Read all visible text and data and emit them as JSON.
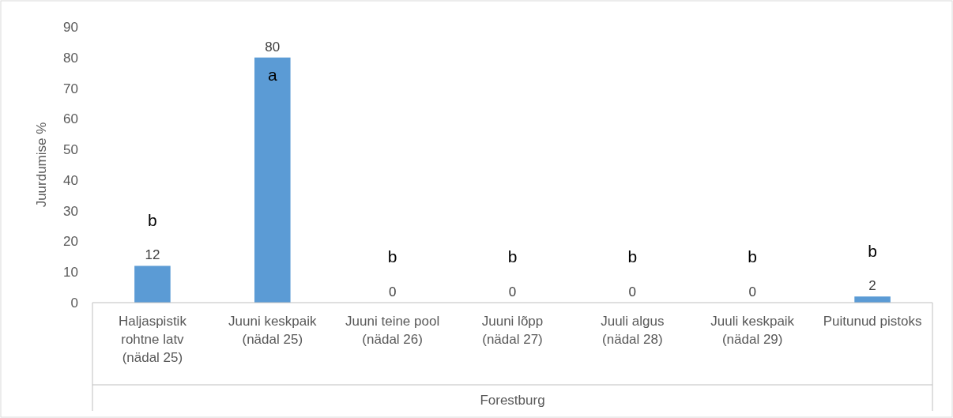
{
  "chart_data": {
    "type": "bar",
    "ylabel": "Juurdumise %",
    "xlabel": "Forestburg",
    "categories": [
      "Haljaspistik rohtne latv (nädal 25)",
      "Juuni keskpaik (nädal 25)",
      "Juuni teine pool (nädal 26)",
      "Juuni lõpp (nädal 27)",
      "Juuli algus (nädal 28)",
      "Juuli keskpaik (nädal 29)",
      "Puitunud pistoks"
    ],
    "values": [
      12,
      80,
      0,
      0,
      0,
      0,
      2
    ],
    "color": "#5b9bd5",
    "data_labels": true,
    "ylim": [
      0,
      90
    ],
    "yticks": [
      0,
      10,
      20,
      30,
      40,
      50,
      60,
      70,
      80,
      90
    ],
    "grid": false,
    "annotations": [
      "b",
      "a",
      "b",
      "b",
      "b",
      "b",
      "b"
    ]
  }
}
